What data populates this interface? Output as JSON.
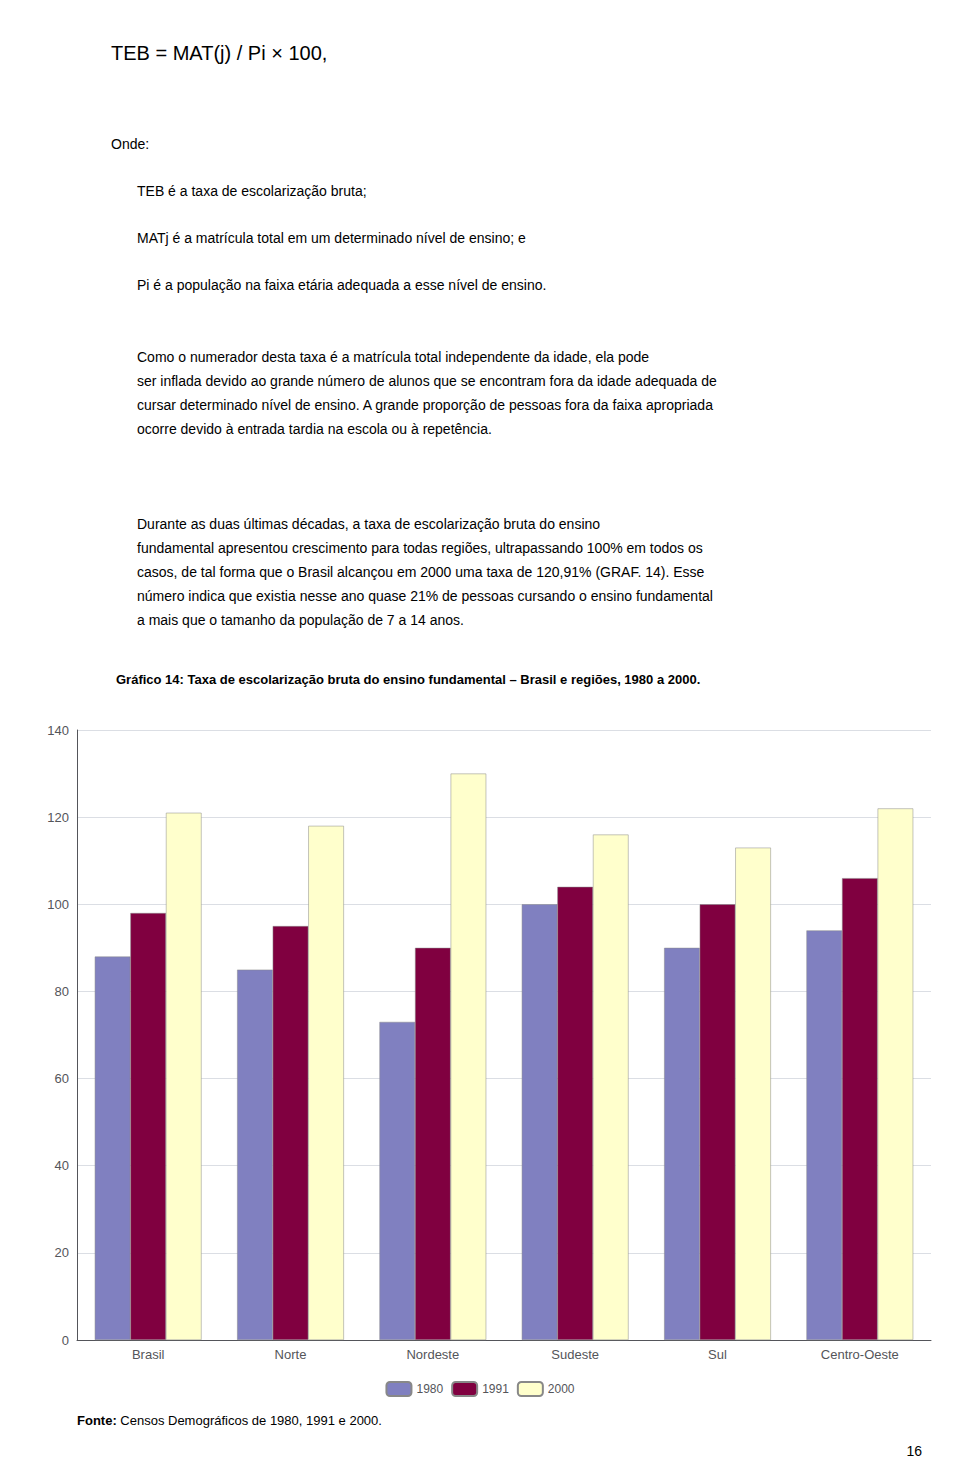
{
  "chart_data": {
    "type": "bar",
    "title": "Gráfico 14: Taxa de escolarização bruta do ensino fundamental – Brasil e regiões, 1980 a 2000.",
    "categories": [
      "Brasil",
      "Norte",
      "Nordeste",
      "Sudeste",
      "Sul",
      "Centro-Oeste"
    ],
    "series": [
      {
        "name": "1980",
        "color": "#8080c0",
        "values": [
          88,
          85,
          73,
          100,
          90,
          94
        ]
      },
      {
        "name": "1991",
        "color": "#800040",
        "values": [
          98,
          95,
          90,
          104,
          100,
          106
        ]
      },
      {
        "name": "2000",
        "color": "#ffffcc",
        "values": [
          121,
          118,
          130,
          116,
          113,
          122
        ]
      }
    ],
    "ylim": [
      0,
      140
    ],
    "yticks": [
      0,
      20,
      40,
      60,
      80,
      100,
      120,
      140
    ],
    "grid": true,
    "legend": "bottom",
    "annotations": [
      "TEB = MAT(j) / Pi × 100,",
      "Onde:",
      "TEB é a taxa de escolarização bruta;",
      "MATj é a matrícula total em um determinado nível de ensino; e",
      "Pi é a população na faixa etária adequada a esse nível de ensino.",
      "Como o numerador desta taxa é a matrícula total independente da idade, ela pode\nser inflada devido ao grande número de alunos que se encontram fora da idade adequada de\ncursar determinado nível de ensino. A grande proporção de pessoas fora da faixa apropriada\nocorre devido à entrada tardia na escola ou à repetência.",
      "Durante as duas últimas décadas, a taxa de escolarização bruta do ensino\nfundamental apresentou crescimento para todas regiões, ultrapassando 100% em todos os\ncasos, de tal forma que o Brasil alcançou em 2000 uma taxa de 120,91% (GRAF. 14). Esse\nnúmero indica que existia nesse ano quase 21% de pessoas cursando o ensino fundamental\na mais que o tamanho da população de 7 a 14 anos.",
      "Fonte: Censos Demográficos de 1980, 1991 e 2000.",
      "16"
    ]
  }
}
